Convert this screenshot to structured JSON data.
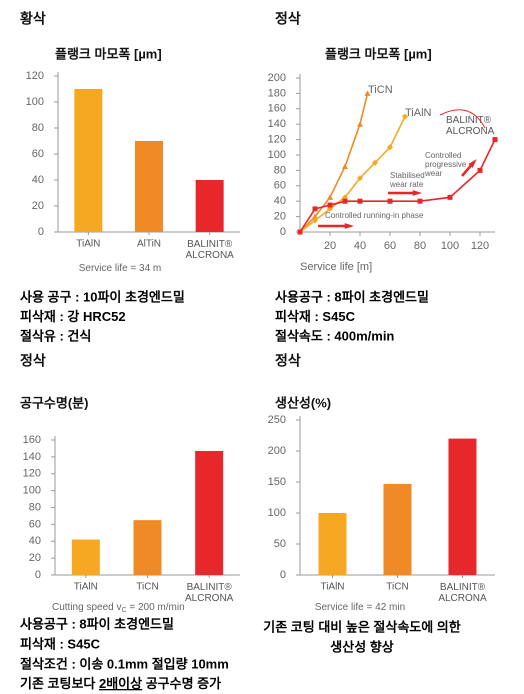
{
  "chart_data": [
    {
      "type": "bar",
      "section": "황삭",
      "title": "플랭크 마모폭 [µm]",
      "categories": [
        "TiAlN",
        "AlTiN",
        "BALINIT® ALCRONA"
      ],
      "values": [
        110,
        70,
        40
      ],
      "colors": [
        "#f7a823",
        "#f08a24",
        "#e8272a"
      ],
      "ylim": [
        0,
        120
      ],
      "yticks": [
        0,
        20,
        40,
        60,
        80,
        100,
        120
      ],
      "note": [
        "Service life = 34 m"
      ],
      "notes": [
        "사용 공구 : 10파이 초경엔드밀",
        "피삭재 : 강 HRC52",
        "절삭유 : 건식"
      ]
    },
    {
      "type": "line",
      "section": "정삭",
      "title": "플랭크 마모폭 [µm]",
      "x_label": "Service life [m]",
      "series": [
        {
          "name": "TiCN",
          "color": "#f08a24",
          "x": [
            0,
            10,
            20,
            30,
            40,
            45
          ],
          "values": [
            0,
            20,
            45,
            85,
            140,
            180
          ]
        },
        {
          "name": "TiAlN",
          "color": "#f7a823",
          "x": [
            0,
            10,
            20,
            30,
            40,
            50,
            60,
            70
          ],
          "values": [
            0,
            15,
            30,
            45,
            70,
            90,
            110,
            150
          ]
        },
        {
          "name": "BALINIT® ALCRONA",
          "color": "#e8272a",
          "x": [
            0,
            10,
            20,
            30,
            40,
            60,
            80,
            100,
            120,
            130
          ],
          "values": [
            0,
            30,
            35,
            40,
            40,
            40,
            40,
            45,
            80,
            120
          ]
        }
      ],
      "annotations": [
        "Controlled running-in phase",
        "Stabilised wear rate",
        "Controlled progressive wear"
      ],
      "xlim": [
        0,
        130
      ],
      "xticks": [
        20,
        40,
        60,
        80,
        100,
        120
      ],
      "ylim": [
        0,
        200
      ],
      "yticks": [
        0,
        20,
        40,
        60,
        80,
        100,
        120,
        140,
        160,
        180,
        200
      ],
      "notes": [
        "사용공구 : 8파이 초경엔드밀",
        "피삭재 : S45C",
        "절삭속도 : 400m/min"
      ]
    },
    {
      "type": "bar",
      "section": "정삭",
      "title": "공구수명(분)",
      "categories": [
        "TiAlN",
        "TiCN",
        "BALINIT® ALCRONA"
      ],
      "values": [
        42,
        65,
        147
      ],
      "colors": [
        "#f7a823",
        "#f08a24",
        "#e8272a"
      ],
      "ylim": [
        0,
        160
      ],
      "yticks": [
        0,
        20,
        40,
        60,
        80,
        100,
        120,
        140,
        160
      ],
      "note": [
        "Cutting speed v",
        "C",
        " = 200 m/min"
      ],
      "notes": [
        "사용공구 : 8파이 초경엔드밀",
        "피삭재 : S45C",
        "절삭조건 : 이송 0.1mm 절입량 10mm"
      ],
      "summary": [
        "기존 코팅보다 ",
        "2배이상",
        " 공구수명 증가"
      ]
    },
    {
      "type": "bar",
      "section": "정삭",
      "title": "생산성(%)",
      "categories": [
        "TiAlN",
        "TiCN",
        "BALINIT® ALCRONA"
      ],
      "values": [
        100,
        147,
        220
      ],
      "colors": [
        "#f7a823",
        "#f08a24",
        "#e8272a"
      ],
      "ylim": [
        0,
        250
      ],
      "yticks": [
        0,
        50,
        100,
        150,
        200,
        250
      ],
      "note": [
        "Service life = 42 min"
      ],
      "notes": [
        "기존 코팅 대비 높은 절삭속도에 의한",
        "생산성 향상"
      ]
    }
  ]
}
